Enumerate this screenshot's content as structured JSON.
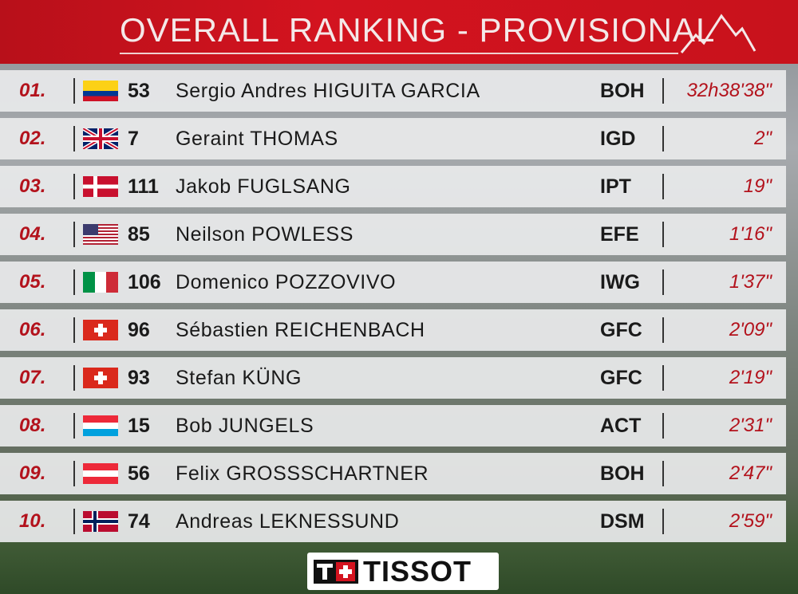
{
  "header": {
    "title": "OVERALL RANKING - PROVISIONAL"
  },
  "table": {
    "rows": [
      [
        "01.",
        "53",
        "Sergio Andres HIGUITA GARCIA",
        "BOH",
        "32h38'38\""
      ],
      [
        "02.",
        "7",
        "Geraint THOMAS",
        "IGD",
        "2\""
      ],
      [
        "03.",
        "111",
        "Jakob FUGLSANG",
        "IPT",
        "19\""
      ],
      [
        "04.",
        "85",
        "Neilson POWLESS",
        "EFE",
        "1'16\""
      ],
      [
        "05.",
        "106",
        "Domenico POZZOVIVO",
        "IWG",
        "1'37\""
      ],
      [
        "06.",
        "96",
        "Sébastien REICHENBACH",
        "GFC",
        "2'09\""
      ],
      [
        "07.",
        "93",
        "Stefan KÜNG",
        "GFC",
        "2'19\""
      ],
      [
        "08.",
        "15",
        "Bob JUNGELS",
        "ACT",
        "2'31\""
      ],
      [
        "09.",
        "56",
        "Felix GROSSSCHARTNER",
        "BOH",
        "2'47\""
      ],
      [
        "10.",
        "74",
        "Andreas LEKNESSUND",
        "DSM",
        "2'59\""
      ]
    ]
  },
  "footer": {
    "sponsor": "TISSOT"
  }
}
